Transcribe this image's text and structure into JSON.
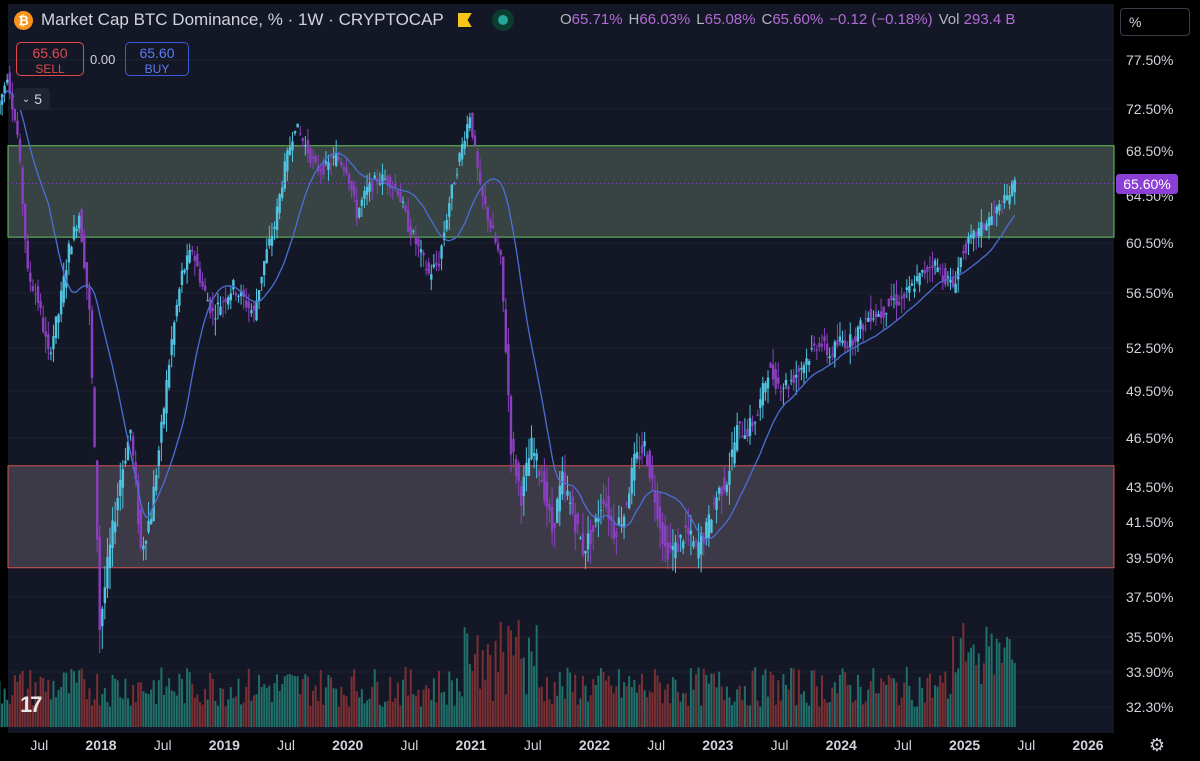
{
  "header": {
    "title": "Market Cap BTC Dominance, % · 1W · CRYPTOCAP",
    "ohlc": {
      "o_label": "O",
      "o_value": "65.71%",
      "h_label": "H",
      "h_value": "66.03%",
      "l_label": "L",
      "l_value": "65.08%",
      "c_label": "C",
      "c_value": "65.60%",
      "change": "−0.12 (−0.18%)",
      "vol_label": "Vol",
      "vol_value": "293.4 B"
    },
    "sell_price": "65.60",
    "sell_label": "SELL",
    "spread": "0.00",
    "buy_price": "65.60",
    "buy_label": "BUY",
    "indicator_count": "5"
  },
  "axis_unit": "%",
  "logo_text": "17",
  "colors": {
    "up": "#4fc3e0",
    "down": "#8a3fc0",
    "ma": "#4a6fd6",
    "green_zone": "#6fcf5f",
    "red_zone": "#e05555",
    "last_price": "#8b3fd6"
  },
  "chart_data": {
    "type": "candlestick",
    "title": "Market Cap BTC Dominance, % · 1W · CRYPTOCAP",
    "y_ticks": [
      "77.50%",
      "72.50%",
      "68.50%",
      "64.50%",
      "60.50%",
      "56.50%",
      "52.50%",
      "49.50%",
      "46.50%",
      "43.50%",
      "41.50%",
      "39.50%",
      "37.50%",
      "35.50%",
      "33.90%",
      "32.30%"
    ],
    "y_tick_values": [
      77.5,
      72.5,
      68.5,
      64.5,
      60.5,
      56.5,
      52.5,
      49.5,
      46.5,
      43.5,
      41.5,
      39.5,
      37.5,
      35.5,
      33.9,
      32.3
    ],
    "last_price_label": "65.60%",
    "last_price": 65.6,
    "x_ticks": [
      {
        "label": "Jul",
        "date": "2017-07",
        "year": false
      },
      {
        "label": "2018",
        "date": "2018-01",
        "year": true
      },
      {
        "label": "Jul",
        "date": "2018-07",
        "year": false
      },
      {
        "label": "2019",
        "date": "2019-01",
        "year": true
      },
      {
        "label": "Jul",
        "date": "2019-07",
        "year": false
      },
      {
        "label": "2020",
        "date": "2020-01",
        "year": true
      },
      {
        "label": "Jul",
        "date": "2020-07",
        "year": false
      },
      {
        "label": "2021",
        "date": "2021-01",
        "year": true
      },
      {
        "label": "Jul",
        "date": "2021-07",
        "year": false
      },
      {
        "label": "2022",
        "date": "2022-01",
        "year": true
      },
      {
        "label": "Jul",
        "date": "2022-07",
        "year": false
      },
      {
        "label": "2023",
        "date": "2023-01",
        "year": true
      },
      {
        "label": "Jul",
        "date": "2023-07",
        "year": false
      },
      {
        "label": "2024",
        "date": "2024-01",
        "year": true
      },
      {
        "label": "Jul",
        "date": "2024-07",
        "year": false
      },
      {
        "label": "2025",
        "date": "2025-01",
        "year": true
      },
      {
        "label": "Jul",
        "date": "2025-07",
        "year": false
      },
      {
        "label": "2026",
        "date": "2026-01",
        "year": true
      }
    ],
    "zones": [
      {
        "name": "upper",
        "low": 61.0,
        "high": 69.0
      },
      {
        "name": "lower",
        "low": 39.0,
        "high": 44.8
      }
    ],
    "price_path": [
      [
        "2017-03",
        72
      ],
      [
        "2017-04",
        76
      ],
      [
        "2017-05",
        70
      ],
      [
        "2017-06",
        58
      ],
      [
        "2017-07",
        56
      ],
      [
        "2017-08",
        52
      ],
      [
        "2017-09",
        55
      ],
      [
        "2017-10",
        60
      ],
      [
        "2017-11",
        63
      ],
      [
        "2017-12",
        55
      ],
      [
        "2018-01",
        36
      ],
      [
        "2018-02",
        40
      ],
      [
        "2018-03",
        44
      ],
      [
        "2018-04",
        47
      ],
      [
        "2018-05",
        40
      ],
      [
        "2018-06",
        42
      ],
      [
        "2018-07",
        47
      ],
      [
        "2018-08",
        53
      ],
      [
        "2018-09",
        58
      ],
      [
        "2018-10",
        60
      ],
      [
        "2018-11",
        57
      ],
      [
        "2018-12",
        55
      ],
      [
        "2019-01",
        56
      ],
      [
        "2019-02",
        57
      ],
      [
        "2019-03",
        56
      ],
      [
        "2019-04",
        55
      ],
      [
        "2019-05",
        59
      ],
      [
        "2019-06",
        62
      ],
      [
        "2019-07",
        67
      ],
      [
        "2019-08",
        71
      ],
      [
        "2019-09",
        69
      ],
      [
        "2019-10",
        67
      ],
      [
        "2019-11",
        67
      ],
      [
        "2019-12",
        68
      ],
      [
        "2020-01",
        67
      ],
      [
        "2020-02",
        63
      ],
      [
        "2020-03",
        65
      ],
      [
        "2020-04",
        66
      ],
      [
        "2020-05",
        66
      ],
      [
        "2020-06",
        65
      ],
      [
        "2020-07",
        62
      ],
      [
        "2020-08",
        60
      ],
      [
        "2020-09",
        58
      ],
      [
        "2020-10",
        59
      ],
      [
        "2020-11",
        64
      ],
      [
        "2020-12",
        68
      ],
      [
        "2021-01",
        72
      ],
      [
        "2021-02",
        65
      ],
      [
        "2021-03",
        62
      ],
      [
        "2021-04",
        59
      ],
      [
        "2021-05",
        46
      ],
      [
        "2021-06",
        43
      ],
      [
        "2021-07",
        46
      ],
      [
        "2021-08",
        44
      ],
      [
        "2021-09",
        41
      ],
      [
        "2021-10",
        44
      ],
      [
        "2021-11",
        42
      ],
      [
        "2021-12",
        40
      ],
      [
        "2022-01",
        41
      ],
      [
        "2022-02",
        43
      ],
      [
        "2022-03",
        41
      ],
      [
        "2022-04",
        42
      ],
      [
        "2022-05",
        45
      ],
      [
        "2022-06",
        46
      ],
      [
        "2022-07",
        43
      ],
      [
        "2022-08",
        40
      ],
      [
        "2022-09",
        40
      ],
      [
        "2022-10",
        41
      ],
      [
        "2022-11",
        40
      ],
      [
        "2022-12",
        41
      ],
      [
        "2023-01",
        43
      ],
      [
        "2023-02",
        44
      ],
      [
        "2023-03",
        47
      ],
      [
        "2023-04",
        47
      ],
      [
        "2023-05",
        48
      ],
      [
        "2023-06",
        51
      ],
      [
        "2023-07",
        50
      ],
      [
        "2023-08",
        50
      ],
      [
        "2023-09",
        51
      ],
      [
        "2023-10",
        52
      ],
      [
        "2023-11",
        53
      ],
      [
        "2023-12",
        52
      ],
      [
        "2024-01",
        53
      ],
      [
        "2024-02",
        53
      ],
      [
        "2024-03",
        54
      ],
      [
        "2024-04",
        55
      ],
      [
        "2024-05",
        55
      ],
      [
        "2024-06",
        56
      ],
      [
        "2024-07",
        56
      ],
      [
        "2024-08",
        57
      ],
      [
        "2024-09",
        58
      ],
      [
        "2024-10",
        59
      ],
      [
        "2024-11",
        58
      ],
      [
        "2024-12",
        57
      ],
      [
        "2025-01",
        60
      ],
      [
        "2025-02",
        61
      ],
      [
        "2025-03",
        62
      ],
      [
        "2025-04",
        63
      ],
      [
        "2025-05",
        64
      ],
      [
        "2025-06",
        65.6
      ]
    ]
  }
}
